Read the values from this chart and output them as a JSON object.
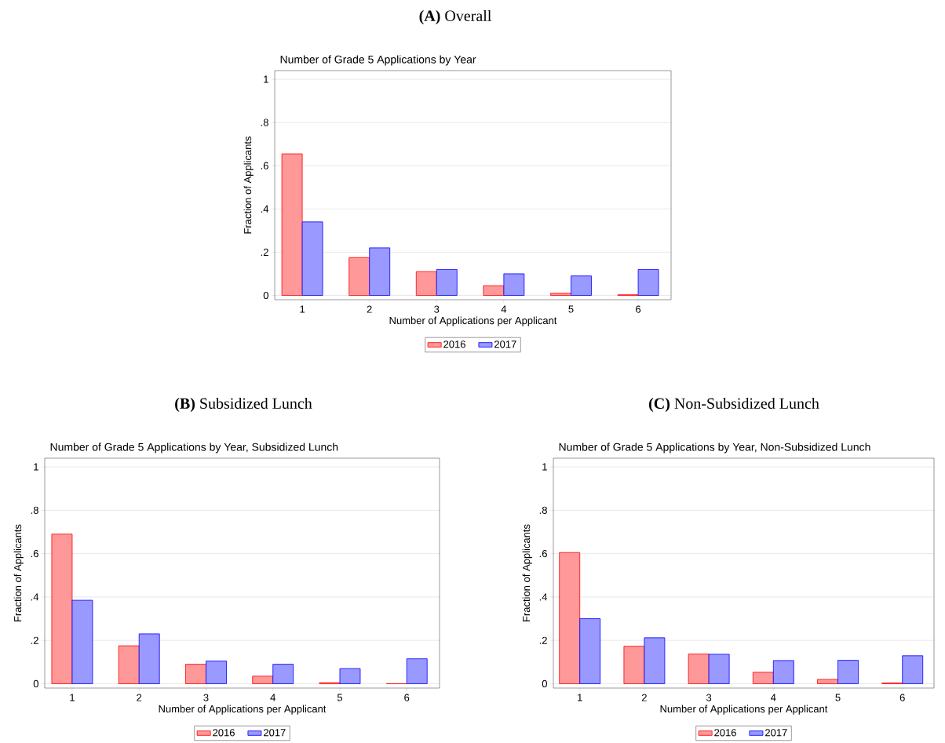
{
  "chart_data": [
    {
      "type": "bar",
      "title": "**(A)** Overall",
      "subtitle": "Number of Grade 5 Applications by Year",
      "xlabel": "Number of Applications per Applicant",
      "ylabel": "Fraction of Applicants",
      "categories": [
        "1",
        "2",
        "3",
        "4",
        "5",
        "6"
      ],
      "series": [
        {
          "name": "2016",
          "color": "#ff0000",
          "values": [
            0.655,
            0.175,
            0.11,
            0.045,
            0.01,
            0.003
          ]
        },
        {
          "name": "2017",
          "color": "#0000ff",
          "values": [
            0.34,
            0.22,
            0.12,
            0.1,
            0.09,
            0.12
          ]
        }
      ],
      "ylim": [
        -0.02,
        1.04
      ],
      "yticks": [
        0,
        {
          "value": 0.2,
          "label": ".2"
        },
        {
          "value": 0.4,
          "label": ".4"
        },
        {
          "value": 0.6,
          "label": ".6"
        },
        {
          "value": 0.8,
          "label": ".8"
        },
        1
      ],
      "grid": "y",
      "legend": "bottom"
    },
    {
      "type": "bar",
      "title": "**(B)** Subsidized Lunch",
      "subtitle": "Number of Grade 5 Applications by Year, Subsidized Lunch",
      "xlabel": "Number of Applications per Applicant",
      "ylabel": "Fraction of Applicants",
      "categories": [
        "1",
        "2",
        "3",
        "4",
        "5",
        "6"
      ],
      "series": [
        {
          "name": "2016",
          "color": "#ff0000",
          "values": [
            0.69,
            0.175,
            0.09,
            0.035,
            0.005,
            0
          ]
        },
        {
          "name": "2017",
          "color": "#0000ff",
          "values": [
            0.385,
            0.23,
            0.105,
            0.09,
            0.07,
            0.115
          ]
        }
      ],
      "ylim": [
        -0.02,
        1.04
      ],
      "yticks": [
        0,
        {
          "value": 0.2,
          "label": ".2"
        },
        {
          "value": 0.4,
          "label": ".4"
        },
        {
          "value": 0.6,
          "label": ".6"
        },
        {
          "value": 0.8,
          "label": ".8"
        },
        1
      ],
      "grid": "y",
      "legend": "bottom"
    },
    {
      "type": "bar",
      "title": "**(C)** Non-Subsidized Lunch",
      "subtitle": "Number of Grade 5 Applications by Year, Non-Subsidized Lunch",
      "xlabel": "Number of Applications per Applicant",
      "ylabel": "Fraction of Applicants",
      "categories": [
        "1",
        "2",
        "3",
        "4",
        "5",
        "6"
      ],
      "series": [
        {
          "name": "2016",
          "color": "#ff0000",
          "values": [
            0.605,
            0.173,
            0.137,
            0.053,
            0.02,
            0.004
          ]
        },
        {
          "name": "2017",
          "color": "#0000ff",
          "values": [
            0.3,
            0.212,
            0.136,
            0.107,
            0.108,
            0.129
          ]
        }
      ],
      "ylim": [
        -0.02,
        1.04
      ],
      "yticks": [
        0,
        {
          "value": 0.2,
          "label": ".2"
        },
        {
          "value": 0.4,
          "label": ".4"
        },
        {
          "value": 0.6,
          "label": ".6"
        },
        {
          "value": 0.8,
          "label": ".8"
        },
        1
      ],
      "grid": "y",
      "legend": "bottom"
    }
  ]
}
